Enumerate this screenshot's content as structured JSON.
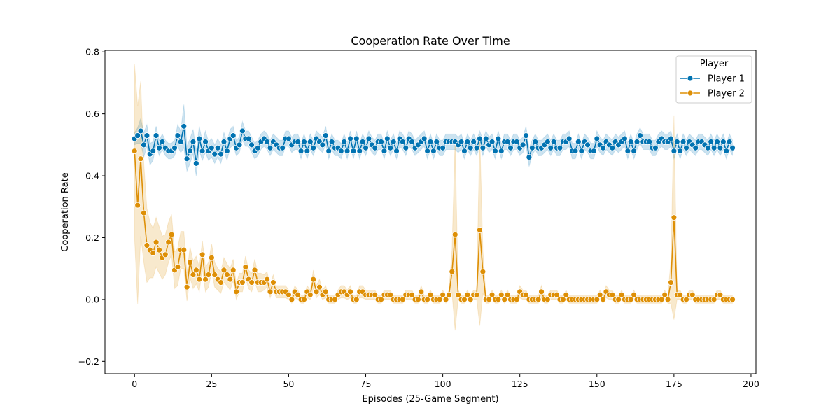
{
  "chart_data": {
    "type": "line",
    "title": "Cooperation Rate Over Time",
    "xlabel": "Episodes (25-Game Segment)",
    "ylabel": "Cooperation Rate",
    "xlim": [
      -9.6,
      201.6
    ],
    "ylim": [
      -0.24,
      0.805
    ],
    "x_ticks": [
      0,
      25,
      50,
      75,
      100,
      125,
      150,
      175,
      200
    ],
    "y_ticks": [
      -0.2,
      0.0,
      0.2,
      0.4,
      0.6,
      0.8
    ],
    "x_tick_labels": [
      "0",
      "25",
      "50",
      "75",
      "100",
      "125",
      "150",
      "175",
      "200"
    ],
    "y_tick_labels": [
      "−0.2",
      "0.0",
      "0.2",
      "0.4",
      "0.6",
      "0.8"
    ],
    "grid": false,
    "legend": {
      "title": "Player",
      "placement": "top-right"
    },
    "series": [
      {
        "name": "Player 1",
        "color": "#0173b2",
        "band_color": "#0173b2",
        "values": [
          0.52,
          0.53,
          0.545,
          0.5,
          0.53,
          0.47,
          0.48,
          0.53,
          0.49,
          0.51,
          0.49,
          0.48,
          0.48,
          0.49,
          0.53,
          0.51,
          0.56,
          0.455,
          0.48,
          0.51,
          0.44,
          0.52,
          0.48,
          0.51,
          0.48,
          0.49,
          0.47,
          0.49,
          0.47,
          0.51,
          0.48,
          0.52,
          0.53,
          0.49,
          0.5,
          0.545,
          0.52,
          0.52,
          0.5,
          0.48,
          0.49,
          0.51,
          0.52,
          0.51,
          0.49,
          0.51,
          0.5,
          0.49,
          0.49,
          0.52,
          0.52,
          0.5,
          0.51,
          0.51,
          0.48,
          0.51,
          0.48,
          0.51,
          0.49,
          0.52,
          0.51,
          0.5,
          0.53,
          0.48,
          0.51,
          0.49,
          0.49,
          0.48,
          0.51,
          0.48,
          0.52,
          0.48,
          0.52,
          0.48,
          0.51,
          0.49,
          0.52,
          0.5,
          0.49,
          0.51,
          0.51,
          0.48,
          0.52,
          0.49,
          0.51,
          0.48,
          0.52,
          0.51,
          0.49,
          0.52,
          0.51,
          0.49,
          0.5,
          0.51,
          0.52,
          0.48,
          0.51,
          0.48,
          0.51,
          0.49,
          0.49,
          0.51,
          0.51,
          0.51,
          0.51,
          0.5,
          0.51,
          0.48,
          0.51,
          0.49,
          0.51,
          0.49,
          0.52,
          0.49,
          0.52,
          0.5,
          0.51,
          0.48,
          0.52,
          0.48,
          0.51,
          0.51,
          0.49,
          0.51,
          0.51,
          0.49,
          0.5,
          0.53,
          0.46,
          0.49,
          0.51,
          0.49,
          0.49,
          0.5,
          0.51,
          0.49,
          0.51,
          0.49,
          0.49,
          0.51,
          0.51,
          0.52,
          0.48,
          0.48,
          0.51,
          0.48,
          0.51,
          0.5,
          0.48,
          0.48,
          0.52,
          0.5,
          0.49,
          0.51,
          0.5,
          0.49,
          0.51,
          0.5,
          0.51,
          0.52,
          0.48,
          0.51,
          0.48,
          0.51,
          0.53,
          0.51,
          0.51,
          0.51,
          0.49,
          0.49,
          0.51,
          0.52,
          0.51,
          0.51,
          0.52,
          0.48,
          0.51,
          0.48,
          0.51,
          0.49,
          0.51,
          0.5,
          0.49,
          0.51,
          0.51,
          0.5,
          0.49,
          0.51,
          0.49,
          0.51,
          0.49,
          0.51,
          0.48,
          0.51,
          0.49
        ],
        "ci": [
          0.02,
          0.025,
          0.04,
          0.04,
          0.035,
          0.035,
          0.03,
          0.03,
          0.025,
          0.025,
          0.025,
          0.025,
          0.025,
          0.025,
          0.035,
          0.035,
          0.07,
          0.04,
          0.04,
          0.04,
          0.04,
          0.04,
          0.03,
          0.035,
          0.03,
          0.03,
          0.03,
          0.03,
          0.03,
          0.03,
          0.03,
          0.03,
          0.03,
          0.025,
          0.025,
          0.03,
          0.025,
          0.025,
          0.025,
          0.025,
          0.025,
          0.025,
          0.025,
          0.025,
          0.025,
          0.025,
          0.025,
          0.025,
          0.025,
          0.025,
          0.025,
          0.025,
          0.025,
          0.025,
          0.025,
          0.025,
          0.025,
          0.025,
          0.025,
          0.025,
          0.025,
          0.025,
          0.03,
          0.025,
          0.025,
          0.025,
          0.025,
          0.025,
          0.025,
          0.025,
          0.025,
          0.025,
          0.025,
          0.025,
          0.025,
          0.025,
          0.025,
          0.025,
          0.025,
          0.025,
          0.025,
          0.025,
          0.025,
          0.025,
          0.025,
          0.025,
          0.025,
          0.025,
          0.025,
          0.025,
          0.025,
          0.025,
          0.025,
          0.025,
          0.025,
          0.025,
          0.025,
          0.025,
          0.025,
          0.025,
          0.025,
          0.025,
          0.025,
          0.025,
          0.025,
          0.025,
          0.025,
          0.025,
          0.025,
          0.025,
          0.025,
          0.025,
          0.025,
          0.025,
          0.025,
          0.025,
          0.025,
          0.025,
          0.025,
          0.025,
          0.025,
          0.025,
          0.025,
          0.025,
          0.025,
          0.025,
          0.025,
          0.03,
          0.03,
          0.025,
          0.025,
          0.025,
          0.025,
          0.025,
          0.025,
          0.025,
          0.025,
          0.025,
          0.025,
          0.025,
          0.025,
          0.025,
          0.025,
          0.025,
          0.025,
          0.025,
          0.025,
          0.025,
          0.025,
          0.025,
          0.025,
          0.025,
          0.025,
          0.025,
          0.025,
          0.025,
          0.025,
          0.025,
          0.025,
          0.025,
          0.025,
          0.025,
          0.025,
          0.025,
          0.025,
          0.025,
          0.025,
          0.025,
          0.025,
          0.025,
          0.025,
          0.025,
          0.025,
          0.025,
          0.025,
          0.025,
          0.025,
          0.025,
          0.025,
          0.025,
          0.025,
          0.025,
          0.025,
          0.025,
          0.025,
          0.025,
          0.025,
          0.025,
          0.025,
          0.025,
          0.025,
          0.025,
          0.025,
          0.025,
          0.025
        ]
      },
      {
        "name": "Player 2",
        "color": "#de8f05",
        "band_color": "#de8f05",
        "values": [
          0.48,
          0.305,
          0.455,
          0.28,
          0.175,
          0.16,
          0.15,
          0.185,
          0.16,
          0.135,
          0.145,
          0.185,
          0.21,
          0.095,
          0.105,
          0.16,
          0.16,
          0.04,
          0.12,
          0.08,
          0.095,
          0.065,
          0.145,
          0.065,
          0.08,
          0.135,
          0.08,
          0.065,
          0.055,
          0.095,
          0.08,
          0.065,
          0.095,
          0.025,
          0.055,
          0.055,
          0.105,
          0.065,
          0.055,
          0.095,
          0.055,
          0.055,
          0.055,
          0.065,
          0.025,
          0.055,
          0.025,
          0.025,
          0.025,
          0.025,
          0.015,
          0.0,
          0.025,
          0.015,
          0.0,
          0.0,
          0.025,
          0.015,
          0.065,
          0.025,
          0.04,
          0.015,
          0.025,
          0.0,
          0.0,
          0.0,
          0.015,
          0.025,
          0.025,
          0.015,
          0.025,
          0.0,
          0.0,
          0.025,
          0.025,
          0.015,
          0.015,
          0.015,
          0.015,
          0.0,
          0.0,
          0.015,
          0.015,
          0.015,
          0.0,
          0.0,
          0.0,
          0.0,
          0.015,
          0.015,
          0.015,
          0.0,
          0.0,
          0.025,
          0.0,
          0.0,
          0.015,
          0.0,
          0.0,
          0.0,
          0.015,
          0.0,
          0.015,
          0.09,
          0.21,
          0.015,
          0.0,
          0.0,
          0.015,
          0.0,
          0.015,
          0.015,
          0.225,
          0.09,
          0.0,
          0.0,
          0.015,
          0.0,
          0.0,
          0.015,
          0.0,
          0.015,
          0.0,
          0.0,
          0.0,
          0.025,
          0.015,
          0.015,
          0.0,
          0.0,
          0.0,
          0.0,
          0.025,
          0.0,
          0.0,
          0.015,
          0.015,
          0.015,
          0.0,
          0.0,
          0.015,
          0.0,
          0.0,
          0.0,
          0.0,
          0.0,
          0.0,
          0.0,
          0.0,
          0.0,
          0.0,
          0.015,
          0.0,
          0.025,
          0.015,
          0.015,
          0.0,
          0.0,
          0.015,
          0.0,
          0.0,
          0.0,
          0.015,
          0.0,
          0.0,
          0.0,
          0.0,
          0.0,
          0.0,
          0.0,
          0.0,
          0.0,
          0.015,
          0.0,
          0.055,
          0.265,
          0.015,
          0.015,
          0.0,
          0.0,
          0.015,
          0.015,
          0.0,
          0.0,
          0.0,
          0.0,
          0.0,
          0.0,
          0.0,
          0.015,
          0.015,
          0.0,
          0.0,
          0.0,
          0.0
        ],
        "ci": [
          0.28,
          0.32,
          0.25,
          0.16,
          0.12,
          0.09,
          0.08,
          0.08,
          0.075,
          0.07,
          0.065,
          0.065,
          0.065,
          0.06,
          0.06,
          0.06,
          0.06,
          0.045,
          0.05,
          0.045,
          0.045,
          0.04,
          0.045,
          0.04,
          0.04,
          0.045,
          0.04,
          0.035,
          0.035,
          0.04,
          0.035,
          0.035,
          0.035,
          0.025,
          0.03,
          0.03,
          0.035,
          0.03,
          0.03,
          0.035,
          0.03,
          0.03,
          0.025,
          0.025,
          0.02,
          0.025,
          0.02,
          0.02,
          0.02,
          0.02,
          0.015,
          0.012,
          0.02,
          0.015,
          0.012,
          0.012,
          0.02,
          0.015,
          0.03,
          0.02,
          0.025,
          0.015,
          0.02,
          0.012,
          0.012,
          0.012,
          0.015,
          0.02,
          0.02,
          0.015,
          0.02,
          0.012,
          0.012,
          0.02,
          0.02,
          0.015,
          0.015,
          0.015,
          0.015,
          0.012,
          0.012,
          0.015,
          0.015,
          0.015,
          0.012,
          0.012,
          0.012,
          0.012,
          0.015,
          0.015,
          0.015,
          0.012,
          0.012,
          0.02,
          0.012,
          0.012,
          0.015,
          0.012,
          0.012,
          0.012,
          0.015,
          0.012,
          0.015,
          0.07,
          0.31,
          0.015,
          0.012,
          0.012,
          0.015,
          0.012,
          0.015,
          0.015,
          0.31,
          0.07,
          0.012,
          0.012,
          0.015,
          0.012,
          0.012,
          0.015,
          0.012,
          0.015,
          0.012,
          0.012,
          0.012,
          0.02,
          0.015,
          0.015,
          0.012,
          0.012,
          0.012,
          0.012,
          0.02,
          0.012,
          0.012,
          0.015,
          0.015,
          0.015,
          0.012,
          0.012,
          0.015,
          0.012,
          0.012,
          0.012,
          0.012,
          0.012,
          0.012,
          0.012,
          0.012,
          0.012,
          0.012,
          0.015,
          0.012,
          0.02,
          0.015,
          0.015,
          0.012,
          0.012,
          0.015,
          0.012,
          0.012,
          0.012,
          0.015,
          0.012,
          0.012,
          0.012,
          0.012,
          0.012,
          0.012,
          0.012,
          0.012,
          0.012,
          0.015,
          0.012,
          0.07,
          0.33,
          0.015,
          0.015,
          0.012,
          0.012,
          0.015,
          0.015,
          0.012,
          0.012,
          0.012,
          0.012,
          0.012,
          0.012,
          0.012,
          0.015,
          0.015,
          0.012,
          0.012,
          0.012,
          0.012
        ]
      }
    ]
  }
}
